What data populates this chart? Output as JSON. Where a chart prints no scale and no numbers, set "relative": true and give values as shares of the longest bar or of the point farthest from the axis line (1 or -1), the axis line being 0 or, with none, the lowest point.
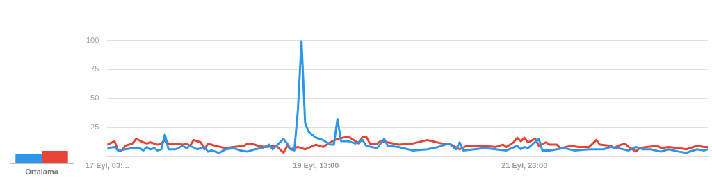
{
  "chart_data": [
    {
      "type": "bar",
      "categories": [
        "Ortalama"
      ],
      "relative": true,
      "tick_labels": "x",
      "grid": false,
      "legend": false,
      "series": [
        {
          "color": "#2d96ea",
          "values": [
            0.77
          ]
        },
        {
          "color": "#ea4335",
          "values": [
            1
          ]
        }
      ]
    },
    {
      "type": "line",
      "xlim": [
        "--09-17T03:00",
        "--09-24T02:00"
      ],
      "ylim": [
        0,
        100
      ],
      "xticks": [
        {
          "value": "--09-17T03:00",
          "label": "17 Eyl, 03:..."
        },
        {
          "value": "--09-19T13:00",
          "label": "19 Eyl, 13:00"
        },
        {
          "value": "--09-21T23:00",
          "label": "21 Eyl, 23:00"
        }
      ],
      "yticks": [
        25,
        50,
        75,
        100
      ],
      "grid": "y",
      "legend": false,
      "marker": "none",
      "line_style": "solid",
      "series": [
        {
          "color": "#2d96ea",
          "x": [
            "--09-17T03:00",
            "--09-17T05:00",
            "--09-17T06:00",
            "--09-17T08:00",
            "--09-17T10:00",
            "--09-17T12:00",
            "--09-17T13:00",
            "--09-17T14:00",
            "--09-17T15:00",
            "--09-17T16:00",
            "--09-17T17:00",
            "--09-17T18:00",
            "--09-17T19:00",
            "--09-17T20:00",
            "--09-17T21:00",
            "--09-17T22:00",
            "--09-18T00:00",
            "--09-18T01:00",
            "--09-18T02:00",
            "--09-18T04:00",
            "--09-18T06:00",
            "--09-18T07:00",
            "--09-18T08:00",
            "--09-18T10:00",
            "--09-18T12:00",
            "--09-18T14:00",
            "--09-18T16:00",
            "--09-18T18:00",
            "--09-18T20:00",
            "--09-18T22:00",
            "--09-19T00:00",
            "--09-19T01:00",
            "--09-19T02:00",
            "--09-19T04:00",
            "--09-19T05:00",
            "--09-19T06:00",
            "--09-19T07:00",
            "--09-19T08:00",
            "--09-19T09:00",
            "--09-19T10:00",
            "--09-19T11:00",
            "--09-19T13:00",
            "--09-19T15:00",
            "--09-19T17:00",
            "--09-19T18:00",
            "--09-19T19:00",
            "--09-19T20:00",
            "--09-19T22:00",
            "--09-20T00:00",
            "--09-20T02:00",
            "--09-20T03:00",
            "--09-20T06:00",
            "--09-20T08:00",
            "--09-20T09:00",
            "--09-20T12:00",
            "--09-20T16:00",
            "--09-20T20:00",
            "--09-20T23:00",
            "--09-21T01:00",
            "--09-21T02:00",
            "--09-21T04:00",
            "--09-21T05:00",
            "--09-21T06:00",
            "--09-21T09:00",
            "--09-21T12:00",
            "--09-21T15:00",
            "--09-21T18:00",
            "--09-21T21:00",
            "--09-21T22:00",
            "--09-21T23:00",
            "--09-22T00:00",
            "--09-22T03:00",
            "--09-22T04:00",
            "--09-22T06:00",
            "--09-22T10:00",
            "--09-22T13:00",
            "--09-22T17:00",
            "--09-22T21:00",
            "--09-22T23:00",
            "--09-23T01:00",
            "--09-23T04:00",
            "--09-23T06:00",
            "--09-23T08:00",
            "--09-23T10:00",
            "--09-23T13:00",
            "--09-23T15:00",
            "--09-23T18:00",
            "--09-23T20:00",
            "--09-23T23:00",
            "--09-24T01:00",
            "--09-24T02:00"
          ],
          "values": [
            7,
            8,
            5,
            6,
            7,
            7,
            5,
            8,
            6,
            7,
            5,
            6,
            19,
            6,
            6,
            6,
            9,
            7,
            9,
            6,
            8,
            4,
            5,
            3,
            6,
            7,
            5,
            4,
            6,
            7,
            10,
            6,
            9,
            15,
            11,
            6,
            5,
            40,
            100,
            29,
            21,
            16,
            14,
            10,
            10,
            32,
            13,
            13,
            11,
            14,
            9,
            7,
            15,
            9,
            8,
            5,
            6,
            8,
            10,
            11,
            6,
            12,
            5,
            6,
            7,
            6,
            5,
            9,
            6,
            8,
            7,
            15,
            5,
            5,
            7,
            5,
            6,
            6,
            8,
            7,
            5,
            8,
            6,
            6,
            4,
            6,
            4,
            3,
            6,
            5,
            6
          ]
        },
        {
          "color": "#ea4335",
          "x": [
            "--09-17T03:00",
            "--09-17T05:00",
            "--09-17T06:00",
            "--09-17T07:00",
            "--09-17T08:00",
            "--09-17T10:00",
            "--09-17T11:00",
            "--09-17T13:00",
            "--09-17T14:00",
            "--09-17T15:00",
            "--09-17T17:00",
            "--09-17T18:00",
            "--09-17T19:00",
            "--09-17T20:00",
            "--09-17T22:00",
            "--09-18T00:00",
            "--09-18T01:00",
            "--09-18T02:00",
            "--09-18T03:00",
            "--09-18T05:00",
            "--09-18T06:00",
            "--09-18T07:00",
            "--09-18T09:00",
            "--09-18T12:00",
            "--09-18T14:00",
            "--09-18T17:00",
            "--09-18T18:00",
            "--09-18T19:00",
            "--09-18T21:00",
            "--09-18T23:00",
            "--09-19T02:00",
            "--09-19T04:00",
            "--09-19T05:00",
            "--09-19T06:00",
            "--09-19T08:00",
            "--09-19T10:00",
            "--09-19T13:00",
            "--09-19T15:00",
            "--09-19T17:00",
            "--09-19T19:00",
            "--09-19T22:00",
            "--09-20T01:00",
            "--09-20T02:00",
            "--09-20T03:00",
            "--09-20T04:00",
            "--09-20T06:00",
            "--09-20T07:00",
            "--09-20T09:00",
            "--09-20T12:00",
            "--09-20T16:00",
            "--09-20T20:00",
            "--09-21T00:00",
            "--09-21T02:00",
            "--09-21T05:00",
            "--09-21T07:00",
            "--09-21T12:00",
            "--09-21T15:00",
            "--09-21T17:00",
            "--09-21T18:00",
            "--09-21T20:00",
            "--09-21T21:00",
            "--09-21T22:00",
            "--09-21T23:00",
            "--09-22T00:00",
            "--09-22T02:00",
            "--09-22T03:00",
            "--09-22T05:00",
            "--09-22T06:00",
            "--09-22T08:00",
            "--09-22T09:00",
            "--09-22T12:00",
            "--09-22T14:00",
            "--09-22T17:00",
            "--09-22T19:00",
            "--09-22T20:00",
            "--09-22T23:00",
            "--09-23T00:00",
            "--09-23T01:00",
            "--09-23T03:00",
            "--09-23T04:00",
            "--09-23T06:00",
            "--09-23T07:00",
            "--09-23T09:00",
            "--09-23T12:00",
            "--09-23T13:00",
            "--09-23T15:00",
            "--09-23T18:00",
            "--09-23T20:00",
            "--09-23T23:00",
            "--09-24T01:00",
            "--09-24T02:00"
          ],
          "values": [
            10,
            13,
            5,
            5,
            9,
            11,
            15,
            12,
            11,
            12,
            10,
            11,
            14,
            11,
            11,
            10,
            11,
            9,
            14,
            12,
            6,
            11,
            9,
            7,
            8,
            9,
            11,
            11,
            9,
            8,
            9,
            3,
            9,
            6,
            8,
            6,
            10,
            8,
            12,
            15,
            17,
            11,
            17,
            17,
            11,
            11,
            13,
            12,
            10,
            11,
            14,
            11,
            11,
            6,
            9,
            9,
            8,
            10,
            8,
            12,
            16,
            13,
            16,
            12,
            15,
            9,
            12,
            10,
            10,
            7,
            9,
            8,
            8,
            14,
            10,
            9,
            7,
            9,
            11,
            8,
            4,
            7,
            8,
            9,
            7,
            8,
            7,
            6,
            9,
            8,
            8
          ]
        }
      ]
    }
  ]
}
